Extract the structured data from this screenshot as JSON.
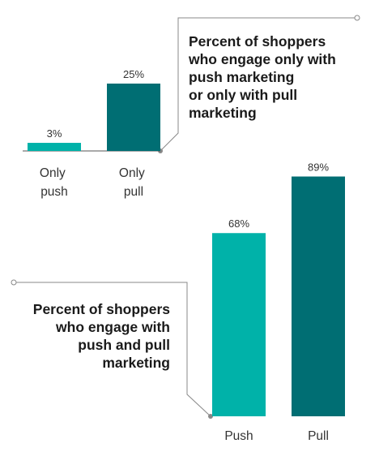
{
  "colors": {
    "push": "#00b2a9",
    "pull": "#006e73",
    "axis": "#555555",
    "connector": "#888888",
    "text": "#333333"
  },
  "chart_data": [
    {
      "type": "bar",
      "title_lines": [
        "Percent of shoppers",
        "who engage only with",
        "push marketing",
        "or only with pull",
        "marketing"
      ],
      "categories": [
        [
          "Only",
          "push"
        ],
        [
          "Only",
          "pull"
        ]
      ],
      "values": [
        3,
        25
      ],
      "value_labels": [
        "3%",
        "25%"
      ],
      "unit": "%",
      "ylim": [
        0,
        100
      ],
      "legend": "none",
      "grid": false
    },
    {
      "type": "bar",
      "title_lines": [
        "Percent of shoppers",
        "who engage with",
        "push and pull",
        "marketing"
      ],
      "categories": [
        [
          "Push"
        ],
        [
          "Pull"
        ]
      ],
      "values": [
        68,
        89
      ],
      "value_labels": [
        "68%",
        "89%"
      ],
      "unit": "%",
      "ylim": [
        0,
        100
      ],
      "legend": "none",
      "grid": false
    }
  ]
}
